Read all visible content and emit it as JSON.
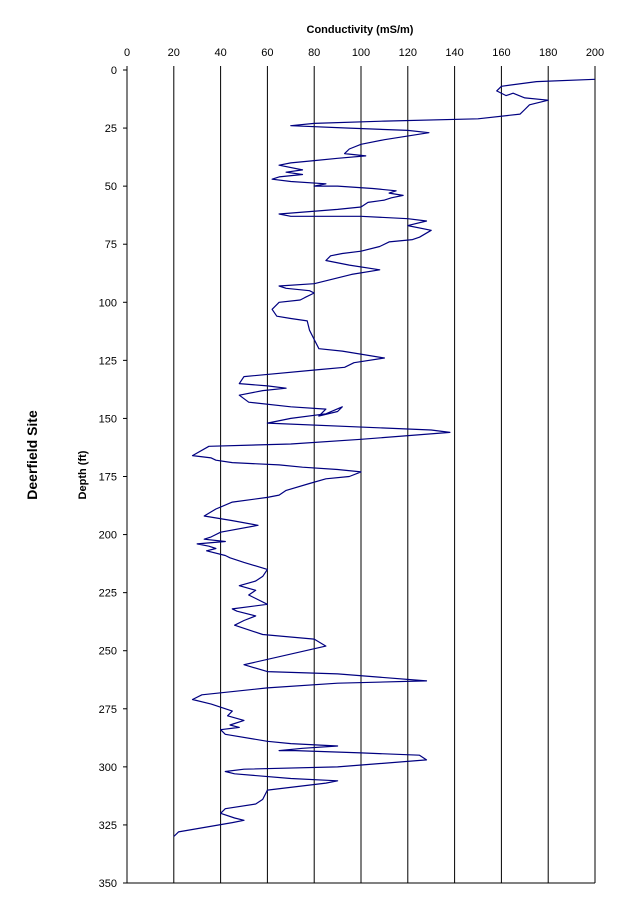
{
  "site_label": "Deerfield Site",
  "colors": {
    "series": "#000080",
    "grid": "#000000",
    "background": "#ffffff"
  },
  "chart_data": {
    "type": "line",
    "orientation": "depth-profile",
    "title": "",
    "xlabel": "Conductivity (mS/m)",
    "ylabel": "Depth (ft)",
    "x_axis_position": "top",
    "y_axis_reversed": true,
    "xlim": [
      0,
      200
    ],
    "ylim": [
      0,
      350
    ],
    "x_ticks": [
      "0",
      "20",
      "40",
      "60",
      "80",
      "100",
      "120",
      "140",
      "160",
      "180",
      "200"
    ],
    "y_ticks": [
      "0",
      "25",
      "50",
      "75",
      "100",
      "125",
      "150",
      "175",
      "200",
      "225",
      "250",
      "275",
      "300",
      "325",
      "350"
    ],
    "grid": "vertical major gridlines",
    "legend": "none",
    "series": [
      {
        "conductivity": [
          200,
          175,
          160,
          158,
          162,
          165,
          170,
          180,
          172,
          170,
          168,
          150,
          110,
          80,
          70,
          95,
          120,
          129,
          110,
          100,
          95,
          93,
          102,
          90,
          80,
          70,
          65,
          75,
          68,
          75,
          65,
          62,
          70,
          85,
          80,
          90,
          105,
          115,
          112,
          118,
          113,
          110,
          103,
          100,
          90,
          65,
          70,
          100,
          120,
          128,
          120,
          130,
          125,
          122,
          112,
          108,
          100,
          92,
          87,
          85,
          95,
          108,
          96,
          88,
          80,
          65,
          68,
          78,
          80,
          76,
          74,
          65,
          62,
          64,
          70,
          77,
          78,
          80,
          82,
          92,
          110,
          97,
          93,
          82,
          50,
          48,
          60,
          68,
          58,
          48,
          52,
          70,
          85,
          82,
          90,
          92,
          85,
          70,
          60,
          130,
          138,
          100,
          70,
          35,
          28,
          36,
          38,
          45,
          65,
          75,
          90,
          100,
          95,
          85,
          78,
          68,
          65,
          60,
          45,
          38,
          33,
          45,
          56,
          40,
          36,
          33,
          42,
          30,
          35,
          38,
          34,
          42,
          44,
          50,
          60,
          58,
          55,
          48,
          55,
          52,
          60,
          45,
          47,
          55,
          50,
          46,
          58,
          80,
          85,
          50,
          60,
          90,
          128,
          90,
          60,
          32,
          28,
          36,
          45,
          43,
          50,
          44,
          48,
          40,
          42,
          60,
          70,
          90,
          75,
          65,
          72,
          100,
          125,
          128,
          90,
          50,
          42,
          46,
          70,
          90,
          85,
          60,
          58,
          55,
          42,
          40,
          46,
          50,
          50,
          45,
          22,
          20
        ],
        "depth": [
          4,
          5,
          7,
          9,
          11,
          10,
          12,
          13,
          15,
          17,
          19,
          21,
          22,
          23,
          24,
          25,
          26,
          27,
          30,
          32,
          34,
          36,
          37,
          38,
          39,
          40,
          41,
          43,
          44,
          45,
          46,
          47,
          48,
          49,
          50,
          50,
          51,
          52,
          53,
          54,
          55,
          56,
          57,
          59,
          60,
          62,
          63,
          63,
          64,
          65,
          67,
          69,
          72,
          73,
          74,
          76,
          78,
          79,
          80,
          82,
          84,
          86,
          88,
          90,
          92,
          93,
          94,
          95,
          96,
          98,
          99,
          100,
          103,
          106,
          107,
          108,
          112,
          116,
          120,
          121,
          124,
          126,
          128,
          129,
          132,
          135,
          136,
          137,
          138,
          140,
          143,
          145,
          146,
          149,
          147,
          145,
          148,
          150,
          152,
          155,
          156,
          159,
          161,
          162,
          166,
          167,
          168,
          169,
          170,
          171,
          172,
          173,
          175,
          176,
          178,
          181,
          183,
          184,
          186,
          189,
          192,
          194,
          196,
          199,
          201,
          202,
          203,
          204,
          205,
          206,
          207,
          209,
          210,
          212,
          215,
          218,
          220,
          222,
          224,
          226,
          230,
          232,
          233,
          235,
          237,
          239,
          243,
          245,
          248,
          256,
          259,
          260,
          263,
          264,
          266,
          269,
          271,
          273,
          276,
          278,
          280,
          282,
          283,
          284,
          286,
          289,
          290,
          291,
          292,
          293,
          293,
          294,
          295,
          297,
          300,
          301,
          302,
          303,
          305,
          306,
          307,
          310,
          314,
          316,
          318,
          320,
          322,
          323,
          323,
          324,
          328,
          330
        ]
      }
    ]
  }
}
